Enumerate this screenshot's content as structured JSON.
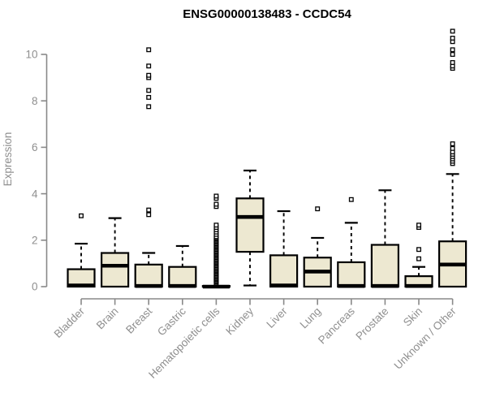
{
  "window": {
    "description": "Gene expression boxplot figure"
  },
  "colors": {
    "background": "#ffffff",
    "box_fill": "#ede8d1",
    "box_stroke": "#000000",
    "median": "#000000",
    "whisker": "#000000",
    "outlier_stroke": "#000000",
    "outlier_fill": "#ffffff",
    "axis_line": "#898989",
    "tick_text": "#8f8f8f",
    "title_text": "#000000"
  },
  "chart_data": {
    "type": "boxplot",
    "title": "ENSG00000138483 - CCDC54",
    "xlabel": "",
    "ylabel": "Expression",
    "grid": false,
    "legend": "none",
    "yticks": [
      0,
      2,
      4,
      6,
      8,
      10
    ],
    "ylim": [
      -0.35,
      11.3
    ],
    "categories": [
      "Bladder",
      "Brain",
      "Breast",
      "Gastric",
      "Hematopoietic cells",
      "Kidney",
      "Liver",
      "Lung",
      "Pancreas",
      "Prostate",
      "Skin",
      "Unknown / Other"
    ],
    "series": [
      {
        "name": "Bladder",
        "q1": 0,
        "median": 0.05,
        "q3": 0.75,
        "whisker_low": 0,
        "whisker_high": 1.85,
        "outliers": [
          3.05
        ]
      },
      {
        "name": "Brain",
        "q1": 0,
        "median": 0.9,
        "q3": 1.45,
        "whisker_low": 0,
        "whisker_high": 2.95,
        "outliers": []
      },
      {
        "name": "Breast",
        "q1": 0,
        "median": 0.03,
        "q3": 0.95,
        "whisker_low": 0,
        "whisker_high": 1.45,
        "outliers": [
          3.1,
          3.3,
          7.75,
          8.15,
          8.45,
          9.0,
          9.1,
          9.5,
          10.2
        ]
      },
      {
        "name": "Gastric",
        "q1": 0,
        "median": 0.03,
        "q3": 0.85,
        "whisker_low": 0,
        "whisker_high": 1.75,
        "outliers": []
      },
      {
        "name": "Hematopoietic cells",
        "q1": 0,
        "median": 0.0,
        "q3": 0.03,
        "whisker_low": 0,
        "whisker_high": 0.03,
        "outliers": [
          0.15,
          0.2,
          0.25,
          0.3,
          0.35,
          0.4,
          0.45,
          0.5,
          0.55,
          0.6,
          0.65,
          0.7,
          0.75,
          0.8,
          0.85,
          0.9,
          0.95,
          1.0,
          1.05,
          1.1,
          1.15,
          1.2,
          1.25,
          1.3,
          1.35,
          1.4,
          1.45,
          1.5,
          1.55,
          1.6,
          1.65,
          1.7,
          1.75,
          1.8,
          1.85,
          1.9,
          1.95,
          2.0,
          2.05,
          2.1,
          2.15,
          2.25,
          2.35,
          2.45,
          2.55,
          2.65,
          3.45,
          3.55,
          3.8,
          3.9
        ]
      },
      {
        "name": "Kidney",
        "q1": 1.5,
        "median": 3.0,
        "q3": 3.8,
        "whisker_low": 0.05,
        "whisker_high": 5.0,
        "outliers": []
      },
      {
        "name": "Liver",
        "q1": 0,
        "median": 0.05,
        "q3": 1.35,
        "whisker_low": 0,
        "whisker_high": 3.25,
        "outliers": []
      },
      {
        "name": "Lung",
        "q1": 0,
        "median": 0.65,
        "q3": 1.25,
        "whisker_low": 0,
        "whisker_high": 2.1,
        "outliers": [
          3.35
        ]
      },
      {
        "name": "Pancreas",
        "q1": 0,
        "median": 0.03,
        "q3": 1.05,
        "whisker_low": 0,
        "whisker_high": 2.75,
        "outliers": [
          3.75
        ]
      },
      {
        "name": "Prostate",
        "q1": 0,
        "median": 0.03,
        "q3": 1.8,
        "whisker_low": 0,
        "whisker_high": 4.15,
        "outliers": []
      },
      {
        "name": "Skin",
        "q1": 0,
        "median": 0.03,
        "q3": 0.45,
        "whisker_low": 0,
        "whisker_high": 0.85,
        "outliers": [
          1.2,
          1.6,
          2.55,
          2.65
        ]
      },
      {
        "name": "Unknown / Other",
        "q1": 0,
        "median": 0.95,
        "q3": 1.95,
        "whisker_low": 0,
        "whisker_high": 4.85,
        "outliers": [
          5.3,
          5.4,
          5.5,
          5.6,
          5.7,
          5.8,
          5.95,
          6.15,
          9.4,
          9.5,
          9.65,
          10.0,
          10.2,
          10.55,
          10.7,
          11.0
        ]
      }
    ]
  }
}
